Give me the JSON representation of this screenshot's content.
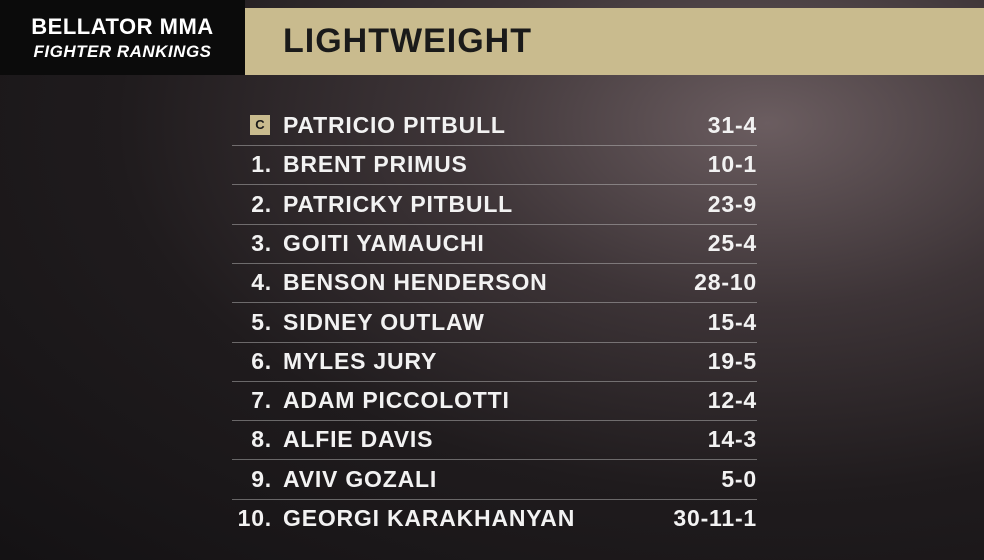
{
  "header": {
    "brand": "BELLATOR MMA",
    "subtitle": "FIGHTER RANKINGS",
    "division": "LIGHTWEIGHT"
  },
  "rankings": [
    {
      "rank": "C",
      "name": "PATRICIO PITBULL",
      "record": "31-4"
    },
    {
      "rank": "1.",
      "name": "BRENT PRIMUS",
      "record": "10-1"
    },
    {
      "rank": "2.",
      "name": "PATRICKY PITBULL",
      "record": "23-9"
    },
    {
      "rank": "3.",
      "name": "GOITI YAMAUCHI",
      "record": "25-4"
    },
    {
      "rank": "4.",
      "name": "BENSON HENDERSON",
      "record": "28-10"
    },
    {
      "rank": "5.",
      "name": "SIDNEY OUTLAW",
      "record": "15-4"
    },
    {
      "rank": "6.",
      "name": "MYLES JURY",
      "record": "19-5"
    },
    {
      "rank": "7.",
      "name": "ADAM PICCOLOTTI",
      "record": "12-4"
    },
    {
      "rank": "8.",
      "name": "ALFIE DAVIS",
      "record": "14-3"
    },
    {
      "rank": "9.",
      "name": "AVIV GOZALI",
      "record": "5-0"
    },
    {
      "rank": "10.",
      "name": "GEORGI KARAKHANYAN",
      "record": "30-11-1"
    }
  ]
}
